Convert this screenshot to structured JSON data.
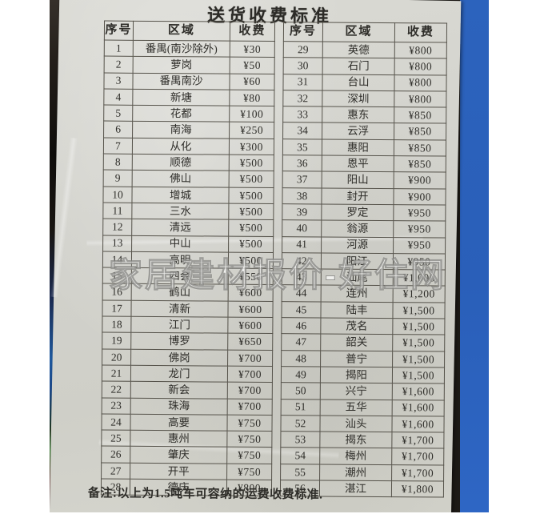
{
  "title": "送货收费标准",
  "watermark": "家居建材报价-好住网",
  "note": "备注:以上为1.5吨车可容纳的运费收费标准.",
  "colors": {
    "photo_blue_band": "#2c63bd",
    "paper": "#d2d2cc",
    "table_line": "#55524a",
    "ink": "#2e2d29"
  },
  "tables": {
    "headers": {
      "no": "序号",
      "region": "区域",
      "fee": "收费"
    },
    "left": {
      "rows": [
        {
          "no": "1",
          "region": "番禺(南沙除外)",
          "fee": "¥30"
        },
        {
          "no": "2",
          "region": "萝岗",
          "fee": "¥50"
        },
        {
          "no": "3",
          "region": "番禺南沙",
          "fee": "¥60"
        },
        {
          "no": "4",
          "region": "新塘",
          "fee": "¥80"
        },
        {
          "no": "5",
          "region": "花都",
          "fee": "¥100"
        },
        {
          "no": "6",
          "region": "南海",
          "fee": "¥250"
        },
        {
          "no": "7",
          "region": "从化",
          "fee": "¥300"
        },
        {
          "no": "8",
          "region": "顺德",
          "fee": "¥500"
        },
        {
          "no": "9",
          "region": "佛山",
          "fee": "¥500"
        },
        {
          "no": "10",
          "region": "增城",
          "fee": "¥500"
        },
        {
          "no": "11",
          "region": "三水",
          "fee": "¥500"
        },
        {
          "no": "12",
          "region": "清远",
          "fee": "¥500"
        },
        {
          "no": "13",
          "region": "中山",
          "fee": "¥500"
        },
        {
          "no": "14",
          "region": "高明",
          "fee": "¥500"
        },
        {
          "no": "15",
          "region": "四会",
          "fee": "¥550"
        },
        {
          "no": "16",
          "region": "鹤山",
          "fee": "¥600"
        },
        {
          "no": "17",
          "region": "清新",
          "fee": "¥600"
        },
        {
          "no": "18",
          "region": "江门",
          "fee": "¥600"
        },
        {
          "no": "19",
          "region": "博罗",
          "fee": "¥650"
        },
        {
          "no": "20",
          "region": "佛岗",
          "fee": "¥700"
        },
        {
          "no": "21",
          "region": "龙门",
          "fee": "¥700"
        },
        {
          "no": "22",
          "region": "新会",
          "fee": "¥700"
        },
        {
          "no": "23",
          "region": "珠海",
          "fee": "¥700"
        },
        {
          "no": "24",
          "region": "高要",
          "fee": "¥750"
        },
        {
          "no": "25",
          "region": "惠州",
          "fee": "¥750"
        },
        {
          "no": "26",
          "region": "肇庆",
          "fee": "¥750"
        },
        {
          "no": "27",
          "region": "开平",
          "fee": "¥750"
        },
        {
          "no": "28",
          "region": "德庆",
          "fee": "¥800"
        }
      ]
    },
    "right": {
      "rows": [
        {
          "no": "29",
          "region": "英德",
          "fee": "¥800"
        },
        {
          "no": "30",
          "region": "石门",
          "fee": "¥800"
        },
        {
          "no": "31",
          "region": "台山",
          "fee": "¥800"
        },
        {
          "no": "32",
          "region": "深圳",
          "fee": "¥800"
        },
        {
          "no": "33",
          "region": "惠东",
          "fee": "¥850"
        },
        {
          "no": "34",
          "region": "云浮",
          "fee": "¥850"
        },
        {
          "no": "35",
          "region": "惠阳",
          "fee": "¥850"
        },
        {
          "no": "36",
          "region": "恩平",
          "fee": "¥850"
        },
        {
          "no": "37",
          "region": "阳山",
          "fee": "¥900"
        },
        {
          "no": "38",
          "region": "封开",
          "fee": "¥900"
        },
        {
          "no": "39",
          "region": "罗定",
          "fee": "¥950"
        },
        {
          "no": "40",
          "region": "翁源",
          "fee": "¥950"
        },
        {
          "no": "41",
          "region": "河源",
          "fee": "¥950"
        },
        {
          "no": "42",
          "region": "阳江",
          "fee": "¥950"
        },
        {
          "no": "43",
          "region": "汕尾",
          "fee": "¥1,000"
        },
        {
          "no": "44",
          "region": "连州",
          "fee": "¥1,200"
        },
        {
          "no": "45",
          "region": "陆丰",
          "fee": "¥1,500"
        },
        {
          "no": "46",
          "region": "茂名",
          "fee": "¥1,500"
        },
        {
          "no": "47",
          "region": "韶关",
          "fee": "¥1,500"
        },
        {
          "no": "48",
          "region": "普宁",
          "fee": "¥1,500"
        },
        {
          "no": "49",
          "region": "揭阳",
          "fee": "¥1,500"
        },
        {
          "no": "50",
          "region": "兴宁",
          "fee": "¥1,600"
        },
        {
          "no": "51",
          "region": "五华",
          "fee": "¥1,600"
        },
        {
          "no": "52",
          "region": "汕头",
          "fee": "¥1,600"
        },
        {
          "no": "53",
          "region": "揭东",
          "fee": "¥1,700"
        },
        {
          "no": "54",
          "region": "梅州",
          "fee": "¥1,700"
        },
        {
          "no": "55",
          "region": "潮州",
          "fee": "¥1,700"
        },
        {
          "no": "56",
          "region": "湛江",
          "fee": "¥1,800"
        }
      ]
    }
  }
}
